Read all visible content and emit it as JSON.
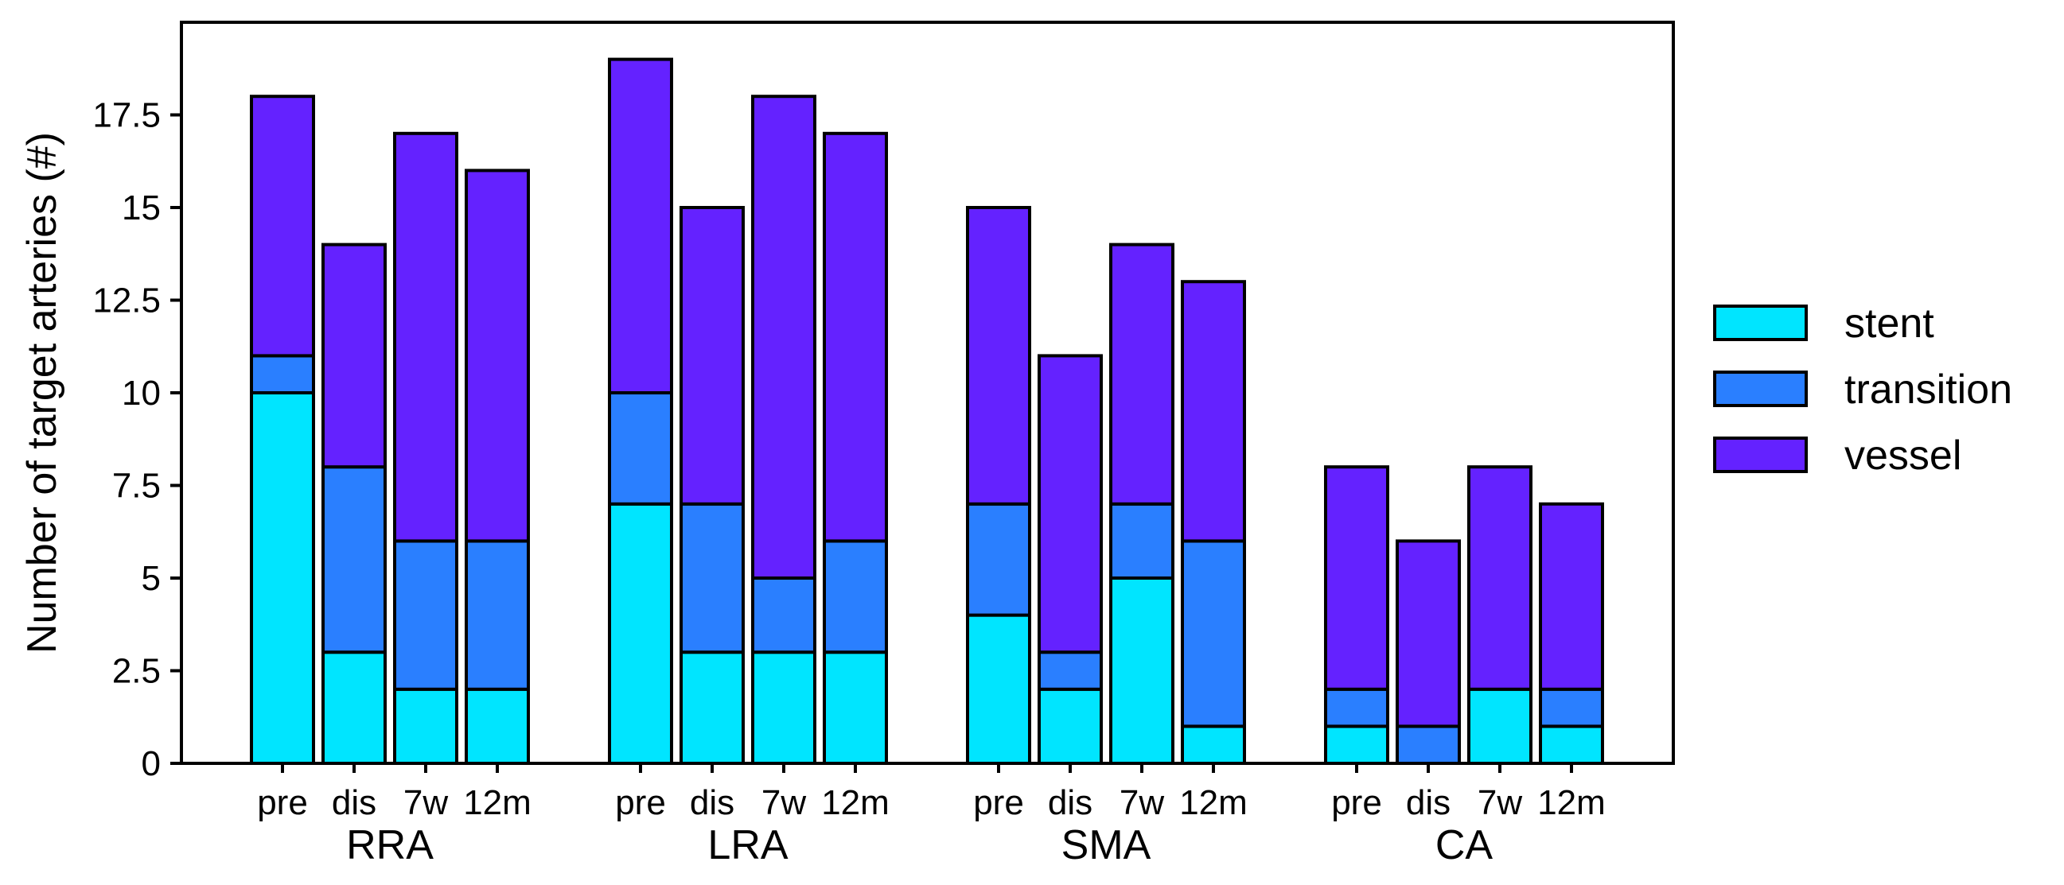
{
  "chart_data": {
    "type": "bar",
    "stacked": true,
    "ylabel": "Number of target arteries (#)",
    "xlabel": "",
    "ylim": [
      0,
      20
    ],
    "yticks": [
      0,
      2.5,
      5,
      7.5,
      10,
      12.5,
      15,
      17.5
    ],
    "ytick_labels": [
      "0",
      "2.5",
      "5",
      "7.5",
      "10",
      "12.5",
      "15",
      "17.5"
    ],
    "grid": false,
    "legend_position": "right",
    "groups": [
      {
        "name": "RRA",
        "categories": [
          "pre",
          "dis",
          "7w",
          "12m"
        ]
      },
      {
        "name": "LRA",
        "categories": [
          "pre",
          "dis",
          "7w",
          "12m"
        ]
      },
      {
        "name": "SMA",
        "categories": [
          "pre",
          "dis",
          "7w",
          "12m"
        ]
      },
      {
        "name": "CA",
        "categories": [
          "pre",
          "dis",
          "7w",
          "12m"
        ]
      }
    ],
    "series": [
      {
        "name": "stent",
        "color": "#00e5ff",
        "values": [
          10,
          3,
          2,
          2,
          7,
          3,
          3,
          3,
          4,
          2,
          5,
          1,
          1,
          0,
          2,
          1
        ]
      },
      {
        "name": "transition",
        "color": "#2a7fff",
        "values": [
          1,
          5,
          4,
          4,
          3,
          4,
          2,
          3,
          3,
          1,
          2,
          5,
          1,
          1,
          0,
          1
        ]
      },
      {
        "name": "vessel",
        "color": "#6422ff",
        "values": [
          7,
          6,
          11,
          10,
          9,
          8,
          13,
          11,
          8,
          8,
          7,
          7,
          6,
          5,
          6,
          5
        ]
      }
    ]
  }
}
